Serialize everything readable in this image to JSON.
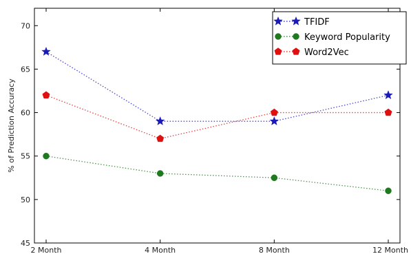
{
  "chart_data": {
    "type": "line",
    "categories": [
      "2 Month",
      "4 Month",
      "8 Month",
      "12 Month"
    ],
    "series": [
      {
        "name": "TFIDF",
        "values": [
          67,
          59,
          59,
          62
        ],
        "color": "#1a1ab8",
        "marker": "star"
      },
      {
        "name": "Keyword Popularity",
        "values": [
          55,
          53,
          52.5,
          51
        ],
        "color": "#1f7a1f",
        "marker": "circle"
      },
      {
        "name": "Word2Vec",
        "values": [
          62,
          57,
          60,
          60
        ],
        "color": "#e01010",
        "marker": "pentagon"
      }
    ],
    "ylabel": "% of Prediction Accuracy",
    "ylim": [
      45,
      72
    ],
    "yticks": [
      45,
      50,
      55,
      60,
      65,
      70
    ],
    "legend": "top-right",
    "grid": false
  }
}
